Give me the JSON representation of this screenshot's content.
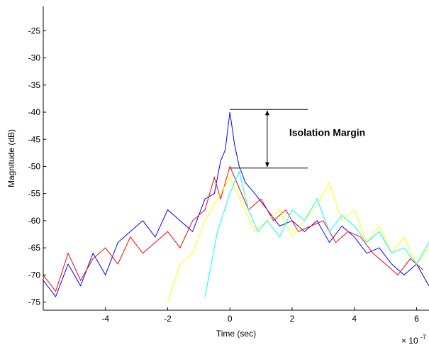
{
  "chart_data": {
    "type": "line",
    "title": "",
    "xlabel": "Time (sec)",
    "ylabel": "Magnitude (dB)",
    "x_multiplier_label": "× 10",
    "x_multiplier_exponent": "-7",
    "xlim": [
      -6,
      6.4
    ],
    "ylim": [
      -76.5,
      -20.5
    ],
    "xticks": [
      -4,
      -2,
      0,
      2,
      4,
      6
    ],
    "xtick_labels": [
      "-4",
      "-2",
      "0",
      "2",
      "4",
      "6"
    ],
    "yticks": [
      -25,
      -30,
      -35,
      -40,
      -45,
      -50,
      -55,
      -60,
      -65,
      -70,
      -75
    ],
    "ytick_labels": [
      "-25",
      "-30",
      "-35",
      "-40",
      "-45",
      "-50",
      "-55",
      "-60",
      "-65",
      "-70",
      "-75"
    ],
    "grid": false,
    "legend": "none",
    "series": [
      {
        "color": "#0000ff",
        "x": [
          -6,
          -5.6,
          -5.2,
          -4.8,
          -4.4,
          -4,
          -3.6,
          -3.2,
          -2.8,
          -2.4,
          -2,
          -1.6,
          -1.2,
          -0.8,
          -0.5,
          -0.3,
          -0.15,
          0,
          0.15,
          0.3,
          0.5,
          0.8,
          1.2,
          1.6,
          2,
          2.4,
          2.8,
          3.2,
          3.6,
          4,
          4.4,
          4.8,
          5.2,
          5.6,
          6,
          6.4
        ],
        "y": [
          -71,
          -74,
          -68,
          -72,
          -66,
          -70,
          -64,
          -62,
          -60,
          -63,
          -58,
          -60,
          -62,
          -56,
          -55,
          -49,
          -47,
          -40,
          -46,
          -50,
          -53,
          -55,
          -58,
          -61,
          -60,
          -62,
          -60,
          -64,
          -61,
          -63,
          -66,
          -65,
          -68,
          -70,
          -68,
          -72
        ]
      },
      {
        "color": "#ff0000",
        "x": [
          -6,
          -5.6,
          -5.2,
          -4.8,
          -4.4,
          -4,
          -3.6,
          -3.2,
          -2.8,
          -2.4,
          -2,
          -1.6,
          -1.2,
          -0.8,
          -0.5,
          -0.3,
          0,
          0.3,
          0.6,
          1,
          1.4,
          1.8,
          2.2,
          2.6,
          3,
          3.4,
          3.8,
          4.2,
          4.6,
          5,
          5.4,
          5.8,
          6.2
        ],
        "y": [
          -70,
          -73,
          -66,
          -71,
          -67,
          -65,
          -68,
          -63,
          -66,
          -64,
          -62,
          -65,
          -60,
          -58,
          -52,
          -56,
          -50,
          -54,
          -58,
          -56,
          -60,
          -58,
          -62,
          -61,
          -60,
          -64,
          -62,
          -63,
          -66,
          -68,
          -70,
          -67,
          -69
        ]
      },
      {
        "color": "#ffff00",
        "x": [
          -2,
          -1.6,
          -1.2,
          -0.8,
          -0.4,
          0,
          0.4,
          0.8,
          1.2,
          1.6,
          2,
          2.4,
          2.8,
          3.2,
          3.6,
          4,
          4.4,
          4.8,
          5.2,
          5.6,
          6,
          6.4
        ],
        "y": [
          -75,
          -68,
          -66,
          -60,
          -56,
          -52,
          -57,
          -62,
          -60,
          -58,
          -63,
          -60,
          -57,
          -53,
          -60,
          -58,
          -64,
          -61,
          -66,
          -63,
          -68,
          -65
        ]
      },
      {
        "color": "#00ffff",
        "x": [
          -0.8,
          -0.4,
          0,
          0.3,
          0.6,
          0.9,
          1.2,
          1.6,
          2,
          2.4,
          2.8,
          3.2,
          3.6,
          4,
          4.4,
          4.8,
          5.2,
          5.6,
          6,
          6.4
        ],
        "y": [
          -74,
          -62,
          -55,
          -51,
          -58,
          -62,
          -60,
          -63,
          -58,
          -60,
          -56,
          -62,
          -59,
          -61,
          -64,
          -62,
          -66,
          -65,
          -68,
          -64
        ]
      }
    ],
    "annotation": {
      "label": "Isolation Margin",
      "top_y": -39.5,
      "bottom_y": -50.3,
      "line_x_start": 0,
      "line_x_end": 2.5,
      "arrow_x": 1.2
    }
  }
}
